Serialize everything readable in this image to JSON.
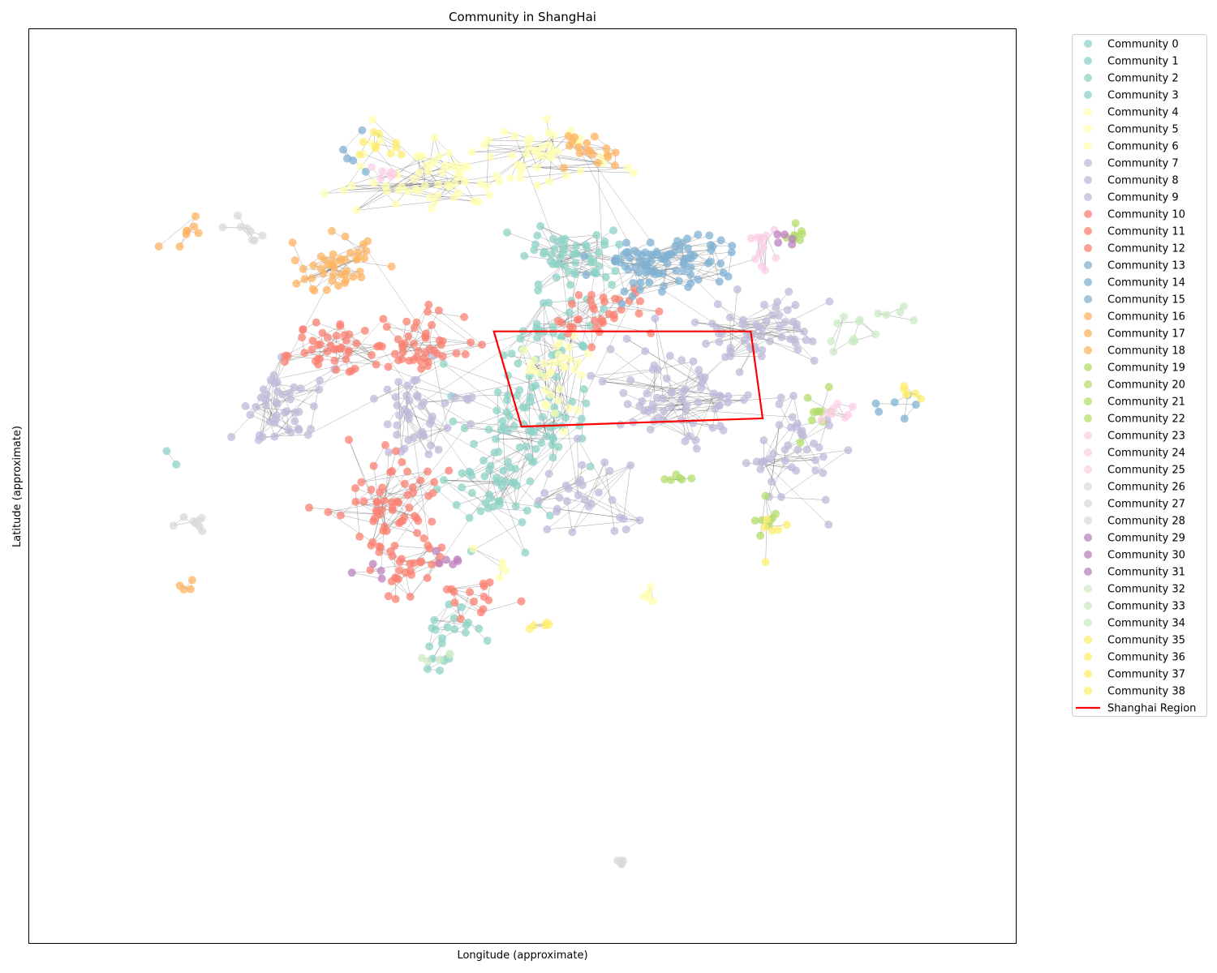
{
  "chart_data": {
    "type": "scatter",
    "title": "Community in ShangHai",
    "xlabel": "Longitude (approximate)",
    "ylabel": "Latitude (approximate)",
    "xlim": [
      0,
      1
    ],
    "ylim": [
      0,
      1
    ],
    "grid": false,
    "ticks_visible": false,
    "legend_placement": "outside-right",
    "node_alpha": 0.75,
    "edge_color": "#333333",
    "series": [
      {
        "name": "Community 0",
        "color": "#8dd3c7",
        "clusters": [
          [
            0.5,
            0.58,
            0.06,
            0.05,
            60
          ],
          [
            0.53,
            0.66,
            0.04,
            0.04,
            30
          ]
        ]
      },
      {
        "name": "Community 1",
        "color": "#8dd3c7",
        "clusters": [
          [
            0.48,
            0.5,
            0.05,
            0.05,
            50
          ]
        ]
      },
      {
        "name": "Community 2",
        "color": "#8dd3c7",
        "clusters": [
          [
            0.55,
            0.75,
            0.05,
            0.04,
            55
          ],
          [
            0.15,
            0.53,
            0.01,
            0.01,
            2
          ]
        ]
      },
      {
        "name": "Community 3",
        "color": "#8dd3c7",
        "clusters": [
          [
            0.43,
            0.35,
            0.03,
            0.02,
            15
          ],
          [
            0.43,
            0.31,
            0.03,
            0.02,
            6
          ]
        ]
      },
      {
        "name": "Community 4",
        "color": "#ffffb3",
        "clusters": [
          [
            0.4,
            0.84,
            0.07,
            0.04,
            60
          ]
        ]
      },
      {
        "name": "Community 5",
        "color": "#ffffb3",
        "clusters": [
          [
            0.52,
            0.86,
            0.06,
            0.04,
            45
          ]
        ]
      },
      {
        "name": "Community 6",
        "color": "#ffffb3",
        "clusters": [
          [
            0.53,
            0.63,
            0.03,
            0.05,
            35
          ],
          [
            0.63,
            0.38,
            0.02,
            0.01,
            5
          ],
          [
            0.48,
            0.42,
            0.02,
            0.02,
            5
          ]
        ]
      },
      {
        "name": "Community 7",
        "color": "#bebada",
        "clusters": [
          [
            0.66,
            0.6,
            0.07,
            0.05,
            70
          ]
        ]
      },
      {
        "name": "Community 8",
        "color": "#bebada",
        "clusters": [
          [
            0.74,
            0.67,
            0.06,
            0.04,
            55
          ],
          [
            0.78,
            0.53,
            0.05,
            0.05,
            40
          ]
        ]
      },
      {
        "name": "Community 9",
        "color": "#bebada",
        "clusters": [
          [
            0.26,
            0.59,
            0.04,
            0.04,
            45
          ],
          [
            0.4,
            0.58,
            0.05,
            0.04,
            45
          ],
          [
            0.57,
            0.49,
            0.05,
            0.05,
            30
          ]
        ]
      },
      {
        "name": "Community 10",
        "color": "#fb8072",
        "clusters": [
          [
            0.31,
            0.65,
            0.04,
            0.03,
            45
          ]
        ]
      },
      {
        "name": "Community 11",
        "color": "#fb8072",
        "clusters": [
          [
            0.36,
            0.48,
            0.05,
            0.05,
            60
          ],
          [
            0.38,
            0.41,
            0.04,
            0.03,
            30
          ]
        ]
      },
      {
        "name": "Community 12",
        "color": "#fb8072",
        "clusters": [
          [
            0.4,
            0.65,
            0.04,
            0.03,
            45
          ],
          [
            0.58,
            0.69,
            0.05,
            0.03,
            35
          ],
          [
            0.45,
            0.38,
            0.04,
            0.02,
            15
          ]
        ]
      },
      {
        "name": "Community 13",
        "color": "#80b1d3",
        "clusters": [
          [
            0.62,
            0.74,
            0.05,
            0.03,
            45
          ]
        ]
      },
      {
        "name": "Community 14",
        "color": "#80b1d3",
        "clusters": [
          [
            0.67,
            0.75,
            0.05,
            0.03,
            45
          ]
        ]
      },
      {
        "name": "Community 15",
        "color": "#80b1d3",
        "clusters": [
          [
            0.88,
            0.58,
            0.03,
            0.02,
            6
          ],
          [
            0.34,
            0.86,
            0.02,
            0.02,
            5
          ]
        ]
      },
      {
        "name": "Community 16",
        "color": "#fdb462",
        "clusters": [
          [
            0.31,
            0.74,
            0.04,
            0.03,
            45
          ]
        ]
      },
      {
        "name": "Community 17",
        "color": "#fdb462",
        "clusters": [
          [
            0.57,
            0.87,
            0.03,
            0.02,
            18
          ]
        ]
      },
      {
        "name": "Community 18",
        "color": "#fdb462",
        "clusters": [
          [
            0.17,
            0.78,
            0.02,
            0.02,
            8
          ],
          [
            0.16,
            0.39,
            0.01,
            0.01,
            4
          ]
        ]
      },
      {
        "name": "Community 19",
        "color": "#b3de69",
        "clusters": [
          [
            0.8,
            0.58,
            0.02,
            0.02,
            10
          ]
        ]
      },
      {
        "name": "Community 20",
        "color": "#b3de69",
        "clusters": [
          [
            0.78,
            0.77,
            0.02,
            0.01,
            8
          ]
        ]
      },
      {
        "name": "Community 21",
        "color": "#b3de69",
        "clusters": [
          [
            0.75,
            0.47,
            0.02,
            0.02,
            8
          ]
        ]
      },
      {
        "name": "Community 22",
        "color": "#b3de69",
        "clusters": [
          [
            0.66,
            0.51,
            0.02,
            0.01,
            6
          ]
        ]
      },
      {
        "name": "Community 23",
        "color": "#fccde5",
        "clusters": [
          [
            0.74,
            0.76,
            0.02,
            0.02,
            12
          ]
        ]
      },
      {
        "name": "Community 24",
        "color": "#fccde5",
        "clusters": [
          [
            0.82,
            0.58,
            0.02,
            0.01,
            8
          ]
        ]
      },
      {
        "name": "Community 25",
        "color": "#fccde5",
        "clusters": [
          [
            0.36,
            0.84,
            0.02,
            0.01,
            6
          ]
        ]
      },
      {
        "name": "Community 26",
        "color": "#d9d9d9",
        "clusters": [
          [
            0.22,
            0.79,
            0.03,
            0.02,
            8
          ]
        ]
      },
      {
        "name": "Community 27",
        "color": "#d9d9d9",
        "clusters": [
          [
            0.17,
            0.46,
            0.02,
            0.01,
            8
          ]
        ]
      },
      {
        "name": "Community 28",
        "color": "#d9d9d9",
        "clusters": [
          [
            0.6,
            0.09,
            0.01,
            0.004,
            5
          ]
        ]
      },
      {
        "name": "Community 29",
        "color": "#bc80bd",
        "clusters": [
          [
            0.42,
            0.42,
            0.02,
            0.01,
            6
          ]
        ]
      },
      {
        "name": "Community 30",
        "color": "#bc80bd",
        "clusters": [
          [
            0.77,
            0.77,
            0.02,
            0.01,
            5
          ]
        ]
      },
      {
        "name": "Community 31",
        "color": "#bc80bd",
        "clusters": [
          [
            0.35,
            0.41,
            0.02,
            0.01,
            4
          ]
        ]
      },
      {
        "name": "Community 32",
        "color": "#ccebc5",
        "clusters": [
          [
            0.83,
            0.67,
            0.02,
            0.02,
            10
          ]
        ]
      },
      {
        "name": "Community 33",
        "color": "#ccebc5",
        "clusters": [
          [
            0.41,
            0.31,
            0.02,
            0.01,
            5
          ]
        ]
      },
      {
        "name": "Community 34",
        "color": "#ccebc5",
        "clusters": [
          [
            0.87,
            0.69,
            0.02,
            0.01,
            5
          ]
        ]
      },
      {
        "name": "Community 35",
        "color": "#ffed6f",
        "clusters": [
          [
            0.89,
            0.6,
            0.02,
            0.01,
            6
          ]
        ]
      },
      {
        "name": "Community 36",
        "color": "#ffed6f",
        "clusters": [
          [
            0.76,
            0.46,
            0.02,
            0.02,
            6
          ]
        ]
      },
      {
        "name": "Community 37",
        "color": "#ffed6f",
        "clusters": [
          [
            0.51,
            0.35,
            0.02,
            0.01,
            5
          ]
        ]
      },
      {
        "name": "Community 38",
        "color": "#ffed6f",
        "clusters": [
          [
            0.36,
            0.87,
            0.03,
            0.02,
            10
          ]
        ]
      }
    ],
    "region": {
      "name": "Shanghai Region",
      "color": "#ff0000",
      "polygon": [
        [
          0.471,
          0.669
        ],
        [
          0.731,
          0.669
        ],
        [
          0.743,
          0.574
        ],
        [
          0.499,
          0.565
        ]
      ]
    }
  }
}
